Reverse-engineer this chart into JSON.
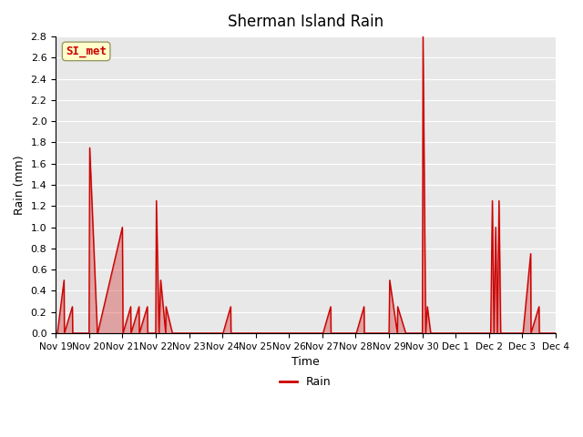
{
  "title": "Sherman Island Rain",
  "xlabel": "Time",
  "ylabel": "Rain (mm)",
  "legend_label": "Rain",
  "legend_line_color": "#cc0000",
  "annotation_text": "SI_met",
  "annotation_color": "#cc0000",
  "annotation_bg": "#ffffcc",
  "background_color": "#e8e8e8",
  "plot_bg_color": "#e8e8e8",
  "line_color": "#cc0000",
  "ylim": [
    0.0,
    2.8
  ],
  "yticks": [
    0.0,
    0.2,
    0.4,
    0.6,
    0.8,
    1.0,
    1.2,
    1.4,
    1.6,
    1.8,
    2.0,
    2.2,
    2.4,
    2.6,
    2.8
  ],
  "x_tick_labels": [
    "Nov 19",
    "Nov 20",
    "Nov 21",
    "Nov 22",
    "Nov 23",
    "Nov 24",
    "Nov 25",
    "Nov 26",
    "Nov 27",
    "Nov 28",
    "Nov 29",
    "Nov 30",
    "Dec 1",
    "Dec 2",
    "Dec 3",
    "Dec 4"
  ],
  "time_values": [
    0,
    0.05,
    0.25,
    0.26,
    0.5,
    0.51,
    1.0,
    1.02,
    1.25,
    1.26,
    2.0,
    2.02,
    2.25,
    2.26,
    2.5,
    2.51,
    2.75,
    2.76,
    3.0,
    3.02,
    3.1,
    3.15,
    3.3,
    3.31,
    3.5,
    3.51,
    4.0,
    4.02,
    5.0,
    5.02,
    5.25,
    5.26,
    6.0,
    6.02,
    7.0,
    7.02,
    8.0,
    8.02,
    8.25,
    8.26,
    9.0,
    9.02,
    9.25,
    9.26,
    10.0,
    10.02,
    10.25,
    10.26,
    10.5,
    10.51,
    11.0,
    11.02,
    11.1,
    11.15,
    11.25,
    11.26,
    12.0,
    12.02,
    13.0,
    13.05,
    13.1,
    13.15,
    13.2,
    13.25,
    13.3,
    13.35,
    13.5,
    13.51,
    14.0,
    14.02,
    14.25,
    14.26,
    14.5,
    14.51,
    15.0
  ],
  "rain_values": [
    0,
    0,
    0.5,
    0,
    0.25,
    0,
    0,
    1.75,
    0,
    0,
    1.0,
    0,
    0.25,
    0,
    0.25,
    0,
    0.25,
    0,
    0,
    1.25,
    0,
    0.5,
    0,
    0.25,
    0,
    0,
    0,
    0,
    0,
    0,
    0.25,
    0,
    0,
    0,
    0,
    0,
    0,
    0,
    0.25,
    0,
    0,
    0,
    0.25,
    0,
    0,
    0.5,
    0,
    0.25,
    0,
    0,
    0,
    2.8,
    0,
    0.25,
    0,
    0,
    0,
    0,
    0,
    0,
    1.25,
    0,
    1.0,
    0,
    1.25,
    0,
    0,
    0,
    0,
    0,
    0.75,
    0,
    0.25,
    0,
    0
  ]
}
